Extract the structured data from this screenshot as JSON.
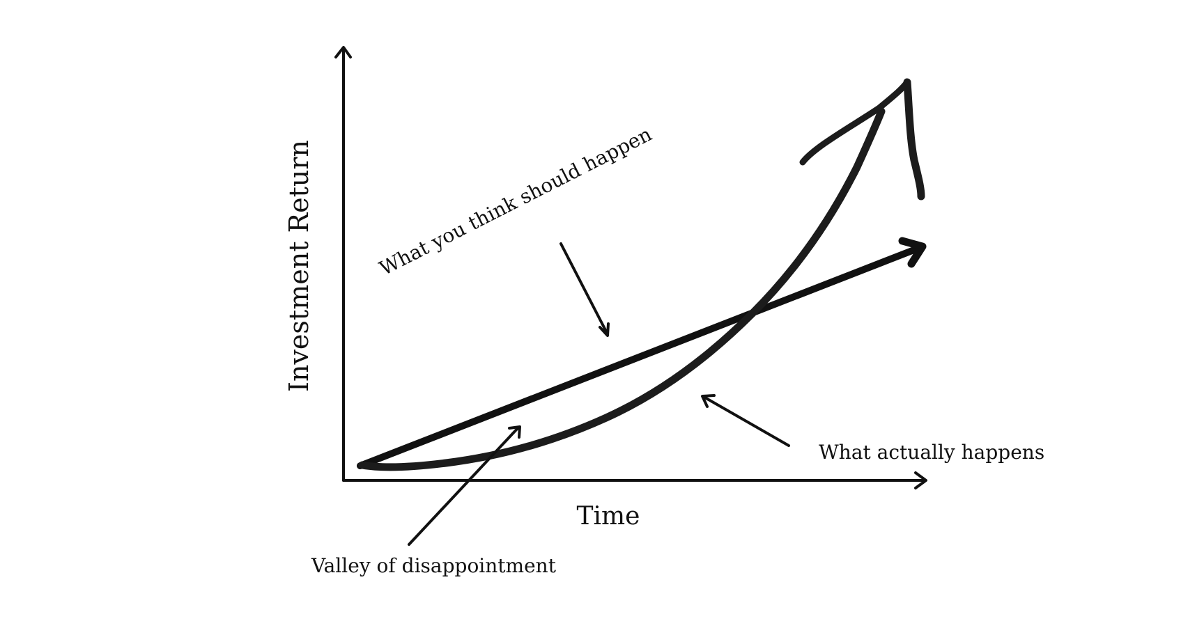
{
  "axes": {
    "y_label": "Investment Return",
    "x_label": "Time"
  },
  "annotations": {
    "expected": "What you think should happen",
    "actual": "What actually happens",
    "valley": "Valley of disappointment"
  },
  "colors": {
    "background": "#ffffff",
    "ink": "#111111",
    "curve": "#1c1c1c"
  }
}
